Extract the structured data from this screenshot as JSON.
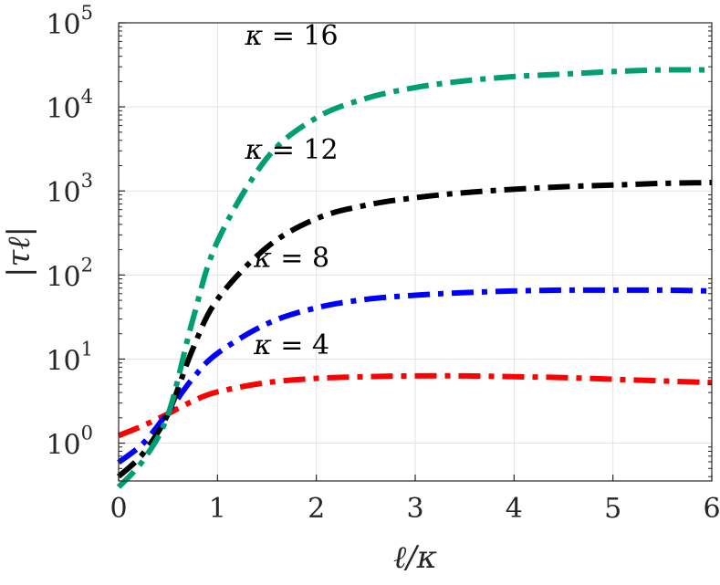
{
  "chart_data": {
    "type": "line",
    "xlabel": "ℓ/κ",
    "ylabel": "|τℓ|",
    "xlim": [
      0,
      6
    ],
    "ylim_log10": [
      -0.45,
      5
    ],
    "y_scale": "log",
    "grid": true,
    "x_ticks": [
      "0",
      "1",
      "2",
      "3",
      "4",
      "5",
      "6"
    ],
    "y_ticks": [
      {
        "base": "10",
        "exp": "0",
        "value": 1
      },
      {
        "base": "10",
        "exp": "1",
        "value": 10
      },
      {
        "base": "10",
        "exp": "2",
        "value": 100
      },
      {
        "base": "10",
        "exp": "3",
        "value": 1000
      },
      {
        "base": "10",
        "exp": "4",
        "value": 10000
      },
      {
        "base": "10",
        "exp": "5",
        "value": 100000
      }
    ],
    "line_style": "dash-dot",
    "series": [
      {
        "name": "κ = 4",
        "color": "#ff0000",
        "x": [
          0,
          0.25,
          0.5,
          0.75,
          1,
          1.5,
          2,
          2.5,
          3,
          3.5,
          4,
          4.5,
          5,
          5.5,
          6
        ],
        "y": [
          1.23,
          1.62,
          2.24,
          3.16,
          4.07,
          5.25,
          5.89,
          6.17,
          6.31,
          6.31,
          6.17,
          6.03,
          5.75,
          5.5,
          5.25
        ]
      },
      {
        "name": "κ = 8",
        "color": "#0000ff",
        "x": [
          0,
          0.25,
          0.5,
          0.75,
          1,
          1.5,
          2,
          2.5,
          3,
          3.5,
          4,
          4.5,
          5,
          5.5,
          6
        ],
        "y": [
          0.59,
          1.0,
          2.34,
          5.89,
          11.7,
          26.3,
          40.7,
          51.3,
          57.5,
          61.7,
          64.6,
          66.1,
          66.1,
          66.1,
          64.6
        ]
      },
      {
        "name": "κ = 12",
        "color": "#000000",
        "x": [
          0,
          0.25,
          0.5,
          0.75,
          1,
          1.5,
          2,
          2.5,
          3,
          3.5,
          4,
          4.5,
          5,
          5.5,
          6
        ],
        "y": [
          0.4,
          0.76,
          2.24,
          13.2,
          51.3,
          214,
          468,
          676,
          832,
          955,
          1047,
          1122,
          1175,
          1230,
          1259
        ]
      },
      {
        "name": "κ = 16",
        "color": "#009e73",
        "x": [
          0,
          0.25,
          0.5,
          0.75,
          1,
          1.5,
          2,
          2.5,
          3,
          3.5,
          4,
          4.5,
          5,
          5.5,
          6
        ],
        "y": [
          0.3,
          0.63,
          2.19,
          29.5,
          251,
          2455,
          7413,
          12589,
          16982,
          20417,
          22909,
          24547,
          26303,
          27542,
          27542
        ]
      }
    ],
    "annotations": [
      {
        "k": "κ",
        "rest": " = 16",
        "series": 3,
        "x": 1.75,
        "y": 55000
      },
      {
        "k": "κ",
        "rest": " = 12",
        "series": 2,
        "x": 1.75,
        "y": 2400
      },
      {
        "k": "κ",
        "rest": " = 8",
        "series": 1,
        "x": 1.75,
        "y": 125
      },
      {
        "k": "κ",
        "rest": " = 4",
        "series": 0,
        "x": 1.75,
        "y": 11.5
      }
    ]
  }
}
